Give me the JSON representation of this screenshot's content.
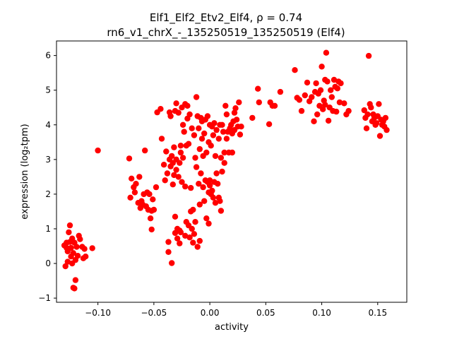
{
  "chart_data": {
    "type": "scatter",
    "title_line1": "Elf1_Elf2_Etv2_Elf4, ρ = 0.74",
    "title_line2": "rn6_v1_chrX_-_135250519_135250519 (Elf4)",
    "xlabel": "activity",
    "ylabel": "expression (log₂tpm)",
    "xlim": [
      -0.137,
      0.176
    ],
    "ylim": [
      -1.12,
      6.42
    ],
    "xticks": [
      -0.1,
      -0.05,
      0.0,
      0.05,
      0.1,
      0.15
    ],
    "xtick_labels": [
      "−0.10",
      "−0.05",
      "0.00",
      "0.05",
      "0.10",
      "0.15"
    ],
    "yticks": [
      -1,
      0,
      1,
      2,
      3,
      4,
      5,
      6
    ],
    "ytick_labels": [
      "−1",
      "0",
      "1",
      "2",
      "3",
      "4",
      "5",
      "6"
    ],
    "grid": false,
    "marker_color": "#ff0000",
    "series": [
      {
        "points": [
          [
            -0.13,
            0.52
          ],
          [
            -0.129,
            -0.08
          ],
          [
            -0.128,
            0.6
          ],
          [
            -0.127,
            0.35
          ],
          [
            -0.126,
            0.9
          ],
          [
            -0.125,
            1.1
          ],
          [
            -0.124,
            0.2
          ],
          [
            -0.124,
            0.45
          ],
          [
            -0.123,
            0.72
          ],
          [
            -0.122,
            0.3
          ],
          [
            -0.122,
            -0.7
          ],
          [
            -0.121,
            -0.72
          ],
          [
            -0.121,
            0.6
          ],
          [
            -0.12,
            -0.48
          ],
          [
            -0.12,
            0.1
          ],
          [
            -0.119,
            0.48
          ],
          [
            -0.118,
            0.22
          ],
          [
            -0.117,
            0.8
          ],
          [
            -0.116,
            0.7
          ],
          [
            -0.114,
            0.48
          ],
          [
            -0.113,
            0.15
          ],
          [
            -0.112,
            0.42
          ],
          [
            -0.111,
            0.2
          ],
          [
            -0.105,
            0.44
          ],
          [
            -0.127,
            0.05
          ],
          [
            -0.125,
            0.62
          ],
          [
            -0.123,
            0.0
          ],
          [
            -0.128,
            0.45
          ],
          [
            -0.1,
            3.26
          ],
          [
            -0.072,
            3.03
          ],
          [
            -0.071,
            1.9
          ],
          [
            -0.07,
            2.45
          ],
          [
            -0.068,
            2.2
          ],
          [
            -0.067,
            2.05
          ],
          [
            -0.066,
            2.3
          ],
          [
            -0.064,
            1.75
          ],
          [
            -0.063,
            2.5
          ],
          [
            -0.062,
            1.6
          ],
          [
            -0.061,
            1.8
          ],
          [
            -0.06,
            1.7
          ],
          [
            -0.059,
            2.0
          ],
          [
            -0.058,
            3.26
          ],
          [
            -0.057,
            1.65
          ],
          [
            -0.056,
            2.05
          ],
          [
            -0.055,
            1.55
          ],
          [
            -0.054,
            2.0
          ],
          [
            -0.053,
            1.3
          ],
          [
            -0.052,
            0.98
          ],
          [
            -0.052,
            1.52
          ],
          [
            -0.051,
            1.85
          ],
          [
            -0.05,
            1.55
          ],
          [
            -0.048,
            2.2
          ],
          [
            -0.047,
            4.36
          ],
          [
            -0.044,
            4.46
          ],
          [
            -0.043,
            3.6
          ],
          [
            -0.041,
            2.85
          ],
          [
            -0.04,
            2.4
          ],
          [
            -0.039,
            3.23
          ],
          [
            -0.038,
            2.6
          ],
          [
            -0.037,
            0.62
          ],
          [
            -0.037,
            0.33
          ],
          [
            -0.036,
            4.36
          ],
          [
            -0.036,
            3.0
          ],
          [
            -0.035,
            4.25
          ],
          [
            -0.035,
            2.8
          ],
          [
            -0.034,
            0.01
          ],
          [
            -0.034,
            3.1
          ],
          [
            -0.033,
            2.28
          ],
          [
            -0.033,
            2.9
          ],
          [
            -0.032,
            3.35
          ],
          [
            -0.032,
            2.55
          ],
          [
            -0.031,
            4.4
          ],
          [
            -0.031,
            1.35
          ],
          [
            -0.031,
            0.88
          ],
          [
            -0.03,
            4.62
          ],
          [
            -0.03,
            2.7
          ],
          [
            -0.03,
            3.0
          ],
          [
            -0.029,
            0.72
          ],
          [
            -0.029,
            1.0
          ],
          [
            -0.028,
            2.5
          ],
          [
            -0.028,
            4.35
          ],
          [
            -0.027,
            0.58
          ],
          [
            -0.027,
            2.9
          ],
          [
            -0.027,
            0.95
          ],
          [
            -0.026,
            3.2
          ],
          [
            -0.026,
            3.4
          ],
          [
            -0.026,
            0.9
          ],
          [
            -0.025,
            4.5
          ],
          [
            -0.025,
            2.35
          ],
          [
            -0.024,
            3.05
          ],
          [
            -0.024,
            4.0
          ],
          [
            -0.023,
            3.8
          ],
          [
            -0.022,
            4.6
          ],
          [
            -0.022,
            0.8
          ],
          [
            -0.022,
            2.22
          ],
          [
            -0.021,
            3.4
          ],
          [
            -0.021,
            1.2
          ],
          [
            -0.02,
            4.55
          ],
          [
            -0.02,
            4.18
          ],
          [
            -0.019,
            3.45
          ],
          [
            -0.019,
            1.1
          ],
          [
            -0.018,
            4.3
          ],
          [
            -0.018,
            0.75
          ],
          [
            -0.017,
            1.5
          ],
          [
            -0.017,
            2.18
          ],
          [
            -0.016,
            1.0
          ],
          [
            -0.016,
            3.9
          ],
          [
            -0.015,
            0.6
          ],
          [
            -0.015,
            1.55
          ],
          [
            -0.014,
            0.85
          ],
          [
            -0.014,
            3.7
          ],
          [
            -0.013,
            1.2
          ],
          [
            -0.013,
            3.05
          ],
          [
            -0.012,
            2.78
          ],
          [
            -0.012,
            4.8
          ],
          [
            -0.011,
            4.25
          ],
          [
            -0.011,
            0.48
          ],
          [
            -0.01,
            3.9
          ],
          [
            -0.01,
            2.3
          ],
          [
            -0.009,
            3.3
          ],
          [
            -0.009,
            1.7
          ],
          [
            -0.009,
            0.65
          ],
          [
            -0.008,
            4.2
          ],
          [
            -0.008,
            2.6
          ],
          [
            -0.007,
            3.6
          ],
          [
            -0.007,
            4.1
          ],
          [
            -0.006,
            3.1
          ],
          [
            -0.006,
            2.2
          ],
          [
            -0.005,
            3.75
          ],
          [
            -0.005,
            1.8
          ],
          [
            -0.004,
            4.15
          ],
          [
            -0.004,
            2.4
          ],
          [
            -0.003,
            3.2
          ],
          [
            -0.003,
            1.3
          ],
          [
            -0.002,
            4.25
          ],
          [
            -0.002,
            2.35
          ],
          [
            -0.001,
            3.5
          ],
          [
            -0.001,
            1.15
          ],
          [
            -0.001,
            2.05
          ],
          [
            0.0,
            4.0
          ],
          [
            0.0,
            2.25
          ],
          [
            0.0,
            2.4
          ],
          [
            0.001,
            3.4
          ],
          [
            0.001,
            2.0
          ],
          [
            0.002,
            3.95
          ],
          [
            0.002,
            2.1
          ],
          [
            0.003,
            3.7
          ],
          [
            0.003,
            1.9
          ],
          [
            0.004,
            2.35
          ],
          [
            0.004,
            4.05
          ],
          [
            0.005,
            3.1
          ],
          [
            0.005,
            1.75
          ],
          [
            0.006,
            2.6
          ],
          [
            0.006,
            3.85
          ],
          [
            0.007,
            2.3
          ],
          [
            0.008,
            3.6
          ],
          [
            0.008,
            1.9
          ],
          [
            0.009,
            4.0
          ],
          [
            0.009,
            1.8
          ],
          [
            0.01,
            3.05
          ],
          [
            0.01,
            1.52
          ],
          [
            0.011,
            4.0
          ],
          [
            0.011,
            2.65
          ],
          [
            0.012,
            3.8
          ],
          [
            0.013,
            3.2
          ],
          [
            0.013,
            2.9
          ],
          [
            0.014,
            4.55
          ],
          [
            0.015,
            3.6
          ],
          [
            0.015,
            4.3
          ],
          [
            0.016,
            3.8
          ],
          [
            0.017,
            3.2
          ],
          [
            0.018,
            3.9
          ],
          [
            0.019,
            4.0
          ],
          [
            0.02,
            3.75
          ],
          [
            0.02,
            3.2
          ],
          [
            0.021,
            4.1
          ],
          [
            0.022,
            4.35
          ],
          [
            0.022,
            3.85
          ],
          [
            0.023,
            4.48
          ],
          [
            0.024,
            4.15
          ],
          [
            0.025,
            3.95
          ],
          [
            0.026,
            4.65
          ],
          [
            0.027,
            3.72
          ],
          [
            0.028,
            3.95
          ],
          [
            0.038,
            4.2
          ],
          [
            0.043,
            5.04
          ],
          [
            0.044,
            4.65
          ],
          [
            0.053,
            4.02
          ],
          [
            0.054,
            4.65
          ],
          [
            0.056,
            4.55
          ],
          [
            0.058,
            4.55
          ],
          [
            0.063,
            4.95
          ],
          [
            0.076,
            5.58
          ],
          [
            0.078,
            4.78
          ],
          [
            0.08,
            4.72
          ],
          [
            0.082,
            4.4
          ],
          [
            0.085,
            4.85
          ],
          [
            0.087,
            5.22
          ],
          [
            0.089,
            4.68
          ],
          [
            0.091,
            4.8
          ],
          [
            0.093,
            4.1
          ],
          [
            0.094,
            4.95
          ],
          [
            0.095,
            5.2
          ],
          [
            0.096,
            4.3
          ],
          [
            0.097,
            4.9
          ],
          [
            0.098,
            4.55
          ],
          [
            0.099,
            5.0
          ],
          [
            0.1,
            5.68
          ],
          [
            0.101,
            4.45
          ],
          [
            0.102,
            4.7
          ],
          [
            0.103,
            4.58
          ],
          [
            0.103,
            5.3
          ],
          [
            0.104,
            6.08
          ],
          [
            0.105,
            5.25
          ],
          [
            0.106,
            4.12
          ],
          [
            0.107,
            4.5
          ],
          [
            0.108,
            5.0
          ],
          [
            0.109,
            4.8
          ],
          [
            0.11,
            4.4
          ],
          [
            0.111,
            5.3
          ],
          [
            0.112,
            5.1
          ],
          [
            0.113,
            4.38
          ],
          [
            0.114,
            5.05
          ],
          [
            0.115,
            5.25
          ],
          [
            0.116,
            4.65
          ],
          [
            0.117,
            5.2
          ],
          [
            0.12,
            4.62
          ],
          [
            0.122,
            4.3
          ],
          [
            0.124,
            4.4
          ],
          [
            0.138,
            4.42
          ],
          [
            0.139,
            4.2
          ],
          [
            0.14,
            3.9
          ],
          [
            0.141,
            4.3
          ],
          [
            0.142,
            5.99
          ],
          [
            0.143,
            4.6
          ],
          [
            0.144,
            4.5
          ],
          [
            0.145,
            4.1
          ],
          [
            0.146,
            4.3
          ],
          [
            0.147,
            4.2
          ],
          [
            0.148,
            4.0
          ],
          [
            0.149,
            4.05
          ],
          [
            0.15,
            4.25
          ],
          [
            0.151,
            4.6
          ],
          [
            0.152,
            3.68
          ],
          [
            0.153,
            4.15
          ],
          [
            0.154,
            4.0
          ],
          [
            0.155,
            4.1
          ],
          [
            0.156,
            3.95
          ],
          [
            0.157,
            4.2
          ],
          [
            0.158,
            3.85
          ]
        ]
      }
    ]
  }
}
